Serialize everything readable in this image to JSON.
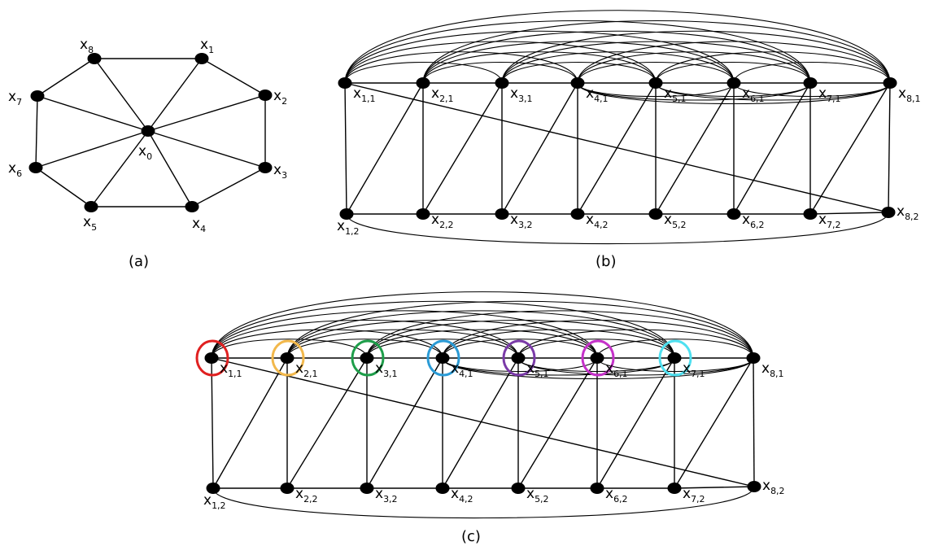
{
  "panels": {
    "a": {
      "caption": "(a)",
      "nodes": [
        {
          "id": "x0",
          "base": "x",
          "sub": "0"
        },
        {
          "id": "x1",
          "base": "x",
          "sub": "1"
        },
        {
          "id": "x2",
          "base": "x",
          "sub": "2"
        },
        {
          "id": "x3",
          "base": "x",
          "sub": "3"
        },
        {
          "id": "x4",
          "base": "x",
          "sub": "4"
        },
        {
          "id": "x5",
          "base": "x",
          "sub": "5"
        },
        {
          "id": "x6",
          "base": "x",
          "sub": "6"
        },
        {
          "id": "x7",
          "base": "x",
          "sub": "7"
        },
        {
          "id": "x8",
          "base": "x",
          "sub": "8"
        }
      ]
    },
    "b": {
      "caption": "(b)",
      "top_row": [
        "1,1",
        "2,1",
        "3,1",
        "4,1",
        "5,1",
        "6,1",
        "7,1",
        "8,1"
      ],
      "bottom_row": [
        "1,2",
        "2,2",
        "3,2",
        "4,2",
        "5,2",
        "6,2",
        "7,2",
        "8,2"
      ]
    },
    "c": {
      "caption": "(c)",
      "top_row": [
        "1,1",
        "2,1",
        "3,1",
        "4,1",
        "5,1",
        "6,1",
        "7,1",
        "8,1"
      ],
      "bottom_row": [
        "1,2",
        "2,2",
        "3,2",
        "4,2",
        "5,2",
        "6,2",
        "7,2",
        "8,2"
      ],
      "ring_colors": [
        "#e02020",
        "#f2b84b",
        "#1e9e4a",
        "#2b9bd6",
        "#7a3aa8",
        "#c531c9",
        "#4fe0f0"
      ]
    }
  }
}
